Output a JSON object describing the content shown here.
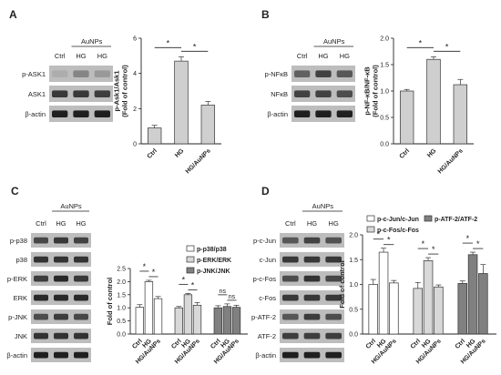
{
  "panels": {
    "A": {
      "letter": "A",
      "treatment_label": "AuNPs",
      "lanes": [
        "Ctrl",
        "HG",
        "HG"
      ],
      "blots": [
        {
          "label": "p-ASK1",
          "intensity": [
            0.32,
            0.48,
            0.4
          ]
        },
        {
          "label": "ASK1",
          "intensity": [
            0.78,
            0.78,
            0.76
          ]
        },
        {
          "label": "β-actin",
          "intensity": [
            0.88,
            0.88,
            0.88
          ]
        }
      ]
    },
    "B": {
      "letter": "B",
      "treatment_label": "AuNPs",
      "lanes": [
        "Ctrl",
        "HG",
        "HG"
      ],
      "blots": [
        {
          "label": "p-NFκB",
          "intensity": [
            0.62,
            0.74,
            0.66
          ]
        },
        {
          "label": "NFκB",
          "intensity": [
            0.74,
            0.74,
            0.7
          ]
        },
        {
          "label": "β-actin",
          "intensity": [
            0.88,
            0.88,
            0.88
          ]
        }
      ]
    },
    "C": {
      "letter": "C",
      "treatment_label": "AuNPs",
      "lanes": [
        "Ctrl",
        "HG",
        "HG"
      ],
      "blots": [
        {
          "label": "p-p38",
          "intensity": [
            0.72,
            0.78,
            0.74
          ]
        },
        {
          "label": "p38",
          "intensity": [
            0.8,
            0.8,
            0.8
          ]
        },
        {
          "label": "p-ERK",
          "intensity": [
            0.76,
            0.84,
            0.78
          ]
        },
        {
          "label": "ERK",
          "intensity": [
            0.84,
            0.84,
            0.84
          ]
        },
        {
          "label": "p-JNK",
          "intensity": [
            0.7,
            0.76,
            0.72
          ]
        },
        {
          "label": "JNK",
          "intensity": [
            0.8,
            0.8,
            0.8
          ]
        },
        {
          "label": "β-actin",
          "intensity": [
            0.88,
            0.88,
            0.88
          ]
        }
      ]
    },
    "D": {
      "letter": "D",
      "treatment_label": "AuNPs",
      "lanes": [
        "Ctrl",
        "HG",
        "HG"
      ],
      "blots": [
        {
          "label": "p-c-Jun",
          "intensity": [
            0.66,
            0.74,
            0.68
          ]
        },
        {
          "label": "c-Jun",
          "intensity": [
            0.78,
            0.78,
            0.78
          ]
        },
        {
          "label": "p-c-Fos",
          "intensity": [
            0.7,
            0.8,
            0.72
          ]
        },
        {
          "label": "c-Fos",
          "intensity": [
            0.78,
            0.78,
            0.78
          ]
        },
        {
          "label": "p-ATF-2",
          "intensity": [
            0.66,
            0.76,
            0.7
          ]
        },
        {
          "label": "ATF-2",
          "intensity": [
            0.76,
            0.76,
            0.76
          ]
        },
        {
          "label": "β-actin",
          "intensity": [
            0.88,
            0.88,
            0.88
          ]
        }
      ]
    }
  },
  "chart_data": [
    {
      "id": "A",
      "type": "bar",
      "categories": [
        "Ctrl",
        "HG",
        "HG/AuNPs"
      ],
      "values": [
        0.9,
        4.7,
        2.2
      ],
      "errors": [
        0.15,
        0.25,
        0.2
      ],
      "ylabel": "p-Ask1/Ask1\n(Fold of control)",
      "ylim": [
        0,
        6
      ],
      "yticks": [
        0,
        2,
        4,
        6
      ],
      "significance": [
        {
          "from": 0,
          "to": 1,
          "label": "*"
        },
        {
          "from": 1,
          "to": 2,
          "label": "*"
        }
      ],
      "color": "#cfcfcf"
    },
    {
      "id": "B",
      "type": "bar",
      "categories": [
        "Ctrl",
        "HG",
        "HG/AuNPs"
      ],
      "values": [
        1.0,
        1.6,
        1.12
      ],
      "errors": [
        0.03,
        0.05,
        0.1
      ],
      "ylabel": "p-NF-κB/NF-κB\n(Fold of control)",
      "ylim": [
        0,
        2.0
      ],
      "yticks": [
        0.0,
        0.5,
        1.0,
        1.5,
        2.0
      ],
      "significance": [
        {
          "from": 0,
          "to": 1,
          "label": "*"
        },
        {
          "from": 1,
          "to": 2,
          "label": "*"
        }
      ],
      "color": "#cfcfcf"
    },
    {
      "id": "C",
      "type": "bar",
      "categories": [
        "Ctrl",
        "HG",
        "HG/AuNPs"
      ],
      "series": [
        {
          "name": "p-p38/p38",
          "values": [
            1.02,
            2.0,
            1.35
          ],
          "errors": [
            0.1,
            0.05,
            0.08
          ],
          "color": "#ffffff"
        },
        {
          "name": "p-ERK/ERK",
          "values": [
            1.0,
            1.5,
            1.1
          ],
          "errors": [
            0.05,
            0.05,
            0.1
          ],
          "color": "#d8d8d8"
        },
        {
          "name": "p-JNK/JNK",
          "values": [
            1.0,
            1.05,
            1.02
          ],
          "errors": [
            0.08,
            0.1,
            0.08
          ],
          "color": "#808080"
        }
      ],
      "ylabel": "Fold of control",
      "ylim": [
        0,
        2.5
      ],
      "yticks": [
        0.0,
        0.5,
        1.0,
        1.5,
        2.0,
        2.5
      ],
      "significance": [
        {
          "series": 0,
          "from": 0,
          "to": 1,
          "label": "*"
        },
        {
          "series": 0,
          "from": 1,
          "to": 2,
          "label": "*"
        },
        {
          "series": 1,
          "from": 0,
          "to": 1,
          "label": "*"
        },
        {
          "series": 1,
          "from": 1,
          "to": 2,
          "label": "*"
        },
        {
          "series": 2,
          "from": 0,
          "to": 1,
          "label": "ns"
        },
        {
          "series": 2,
          "from": 1,
          "to": 2,
          "label": "ns"
        }
      ]
    },
    {
      "id": "D",
      "type": "bar",
      "categories": [
        "Ctrl",
        "HG",
        "HG/AuNPs"
      ],
      "series": [
        {
          "name": "p-c-Jun/c-Jun",
          "values": [
            1.0,
            1.65,
            1.03
          ],
          "errors": [
            0.1,
            0.08,
            0.05
          ],
          "color": "#ffffff"
        },
        {
          "name": "p-c-Fos/c-Fos",
          "values": [
            0.92,
            1.48,
            0.95
          ],
          "errors": [
            0.12,
            0.06,
            0.04
          ],
          "color": "#d8d8d8"
        },
        {
          "name": "p-ATF-2/ATF-2",
          "values": [
            1.02,
            1.6,
            1.22
          ],
          "errors": [
            0.05,
            0.05,
            0.18
          ],
          "color": "#808080"
        }
      ],
      "ylabel": "Fold of control",
      "ylim": [
        0,
        2.0
      ],
      "yticks": [
        0.0,
        0.5,
        1.0,
        1.5,
        2.0
      ],
      "significance": [
        {
          "series": 0,
          "from": 0,
          "to": 1,
          "label": "*"
        },
        {
          "series": 0,
          "from": 1,
          "to": 2,
          "label": "*"
        },
        {
          "series": 1,
          "from": 0,
          "to": 1,
          "label": "*"
        },
        {
          "series": 1,
          "from": 1,
          "to": 2,
          "label": "*"
        },
        {
          "series": 2,
          "from": 0,
          "to": 1,
          "label": "*"
        },
        {
          "series": 2,
          "from": 1,
          "to": 2,
          "label": "*"
        }
      ]
    }
  ]
}
